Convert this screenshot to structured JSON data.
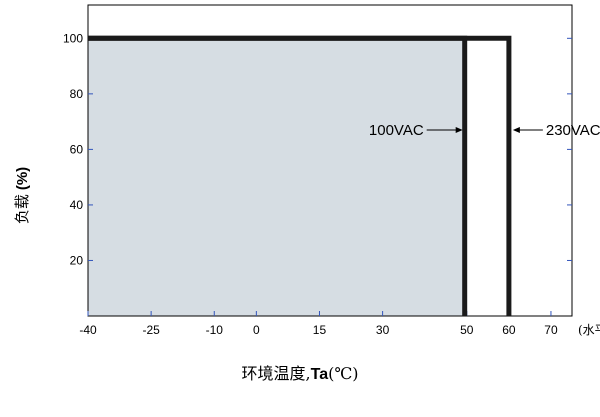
{
  "chart_data": {
    "type": "line",
    "title": "",
    "xlabel": {
      "prefix": "环境温度,",
      "main": "Ta",
      "unit": "(℃)"
    },
    "ylabel": {
      "prefix": "负载",
      "main": "(%)"
    },
    "x_ticks": [
      -40,
      -25,
      -10,
      0,
      15,
      30,
      50,
      60,
      70
    ],
    "x_tick_labels": [
      "-40",
      "-25",
      "-10",
      "0",
      "15",
      "30",
      "50",
      "60",
      "70"
    ],
    "x_axis_unit_label": "(水平)",
    "y_ticks": [
      20,
      40,
      60,
      80,
      100
    ],
    "y_tick_labels": [
      "20",
      "40",
      "60",
      "80",
      "100"
    ],
    "xlim": [
      -40,
      75
    ],
    "ylim": [
      0,
      112
    ],
    "grid": false,
    "series": [
      {
        "name": "100VAC",
        "x": [
          -40,
          49.5,
          49.5
        ],
        "y": [
          100,
          100,
          0
        ]
      },
      {
        "name": "230VAC",
        "x": [
          -40,
          60,
          60
        ],
        "y": [
          100,
          100,
          0
        ]
      }
    ],
    "shaded_area": {
      "series": "100VAC",
      "color": "#d6dde3"
    },
    "annotations": [
      {
        "text": "100VAC",
        "x": 49.5,
        "y": 67,
        "arrow": "points-right"
      },
      {
        "text": "230VAC",
        "x": 60,
        "y": 67,
        "arrow": "points-left"
      }
    ],
    "colors": {
      "line": "#1a1a1a",
      "tick_marks": "#3355bb",
      "frame": "#000000"
    }
  }
}
